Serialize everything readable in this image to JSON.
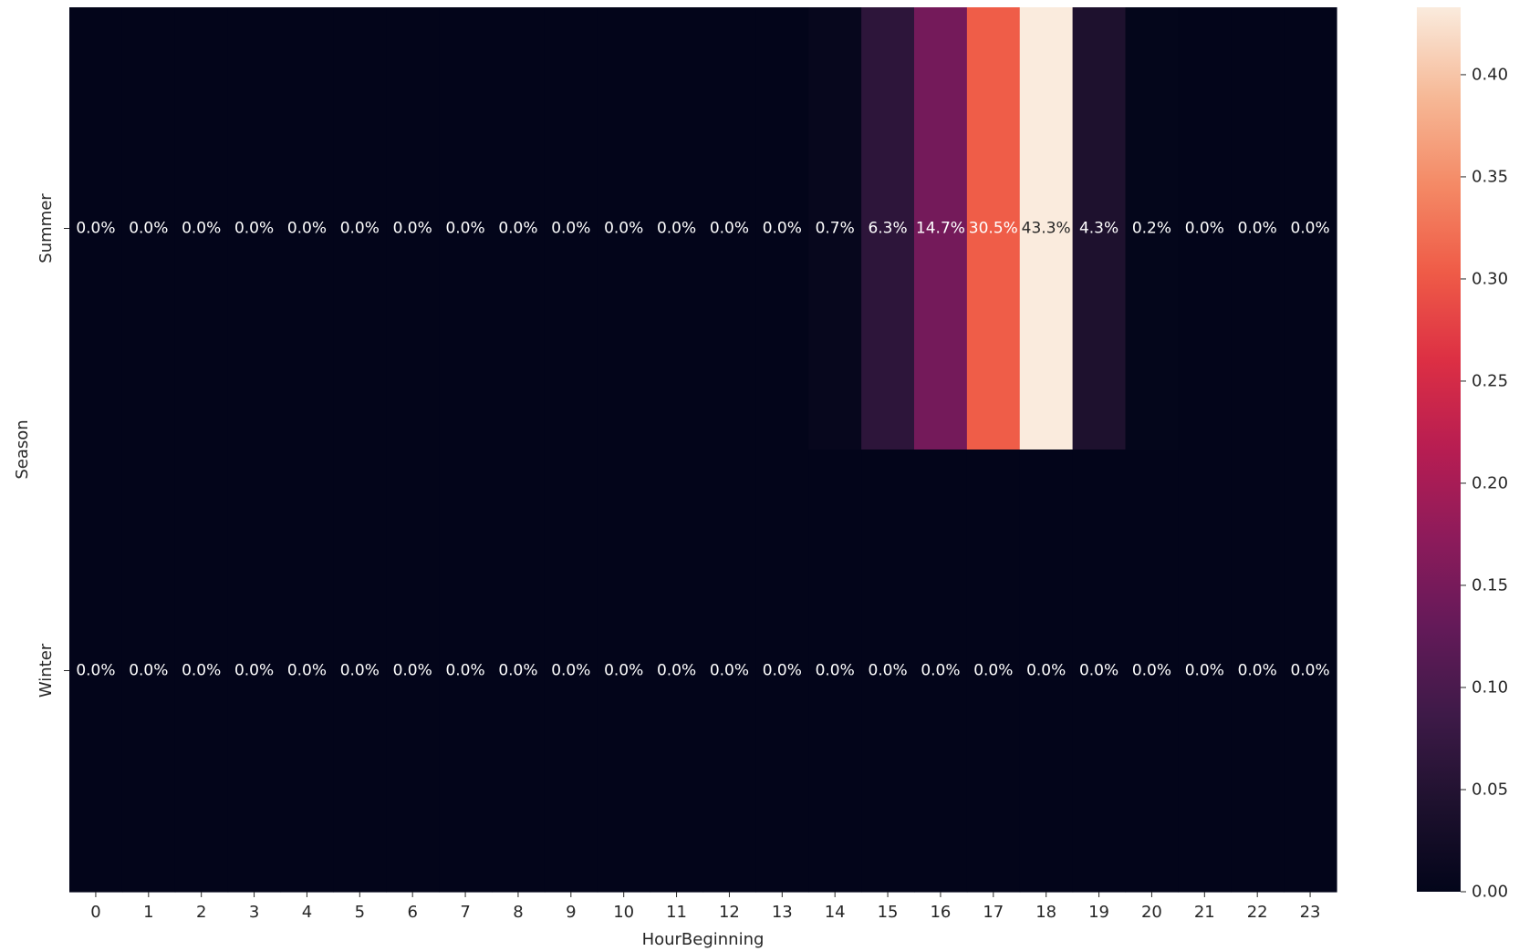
{
  "chart_data": {
    "type": "heatmap",
    "xlabel": "HourBeginning",
    "ylabel": "Season",
    "x_categories": [
      "0",
      "1",
      "2",
      "3",
      "4",
      "5",
      "6",
      "7",
      "8",
      "9",
      "10",
      "11",
      "12",
      "13",
      "14",
      "15",
      "16",
      "17",
      "18",
      "19",
      "20",
      "21",
      "22",
      "23"
    ],
    "y_categories": [
      "Summer",
      "Winter"
    ],
    "values": [
      [
        0,
        0,
        0,
        0,
        0,
        0,
        0,
        0,
        0,
        0,
        0,
        0,
        0,
        0,
        0.007,
        0.063,
        0.147,
        0.305,
        0.433,
        0.043,
        0.002,
        0,
        0,
        0
      ],
      [
        0,
        0,
        0,
        0,
        0,
        0,
        0,
        0,
        0,
        0,
        0,
        0,
        0,
        0,
        0,
        0,
        0,
        0,
        0,
        0,
        0,
        0,
        0,
        0
      ]
    ],
    "annotations": [
      [
        "0.0%",
        "0.0%",
        "0.0%",
        "0.0%",
        "0.0%",
        "0.0%",
        "0.0%",
        "0.0%",
        "0.0%",
        "0.0%",
        "0.0%",
        "0.0%",
        "0.0%",
        "0.0%",
        "0.7%",
        "6.3%",
        "14.7%",
        "30.5%",
        "43.3%",
        "4.3%",
        "0.2%",
        "0.0%",
        "0.0%",
        "0.0%"
      ],
      [
        "0.0%",
        "0.0%",
        "0.0%",
        "0.0%",
        "0.0%",
        "0.0%",
        "0.0%",
        "0.0%",
        "0.0%",
        "0.0%",
        "0.0%",
        "0.0%",
        "0.0%",
        "0.0%",
        "0.0%",
        "0.0%",
        "0.0%",
        "0.0%",
        "0.0%",
        "0.0%",
        "0.0%",
        "0.0%",
        "0.0%",
        "0.0%"
      ]
    ],
    "colorbar": {
      "colormap": "rocket",
      "range": [
        0,
        0.433
      ],
      "ticks": [
        0.0,
        0.05,
        0.1,
        0.15,
        0.2,
        0.25,
        0.3,
        0.35,
        0.4
      ],
      "tick_labels": [
        "0.00",
        "0.05",
        "0.10",
        "0.15",
        "0.20",
        "0.25",
        "0.30",
        "0.35",
        "0.40"
      ]
    }
  }
}
